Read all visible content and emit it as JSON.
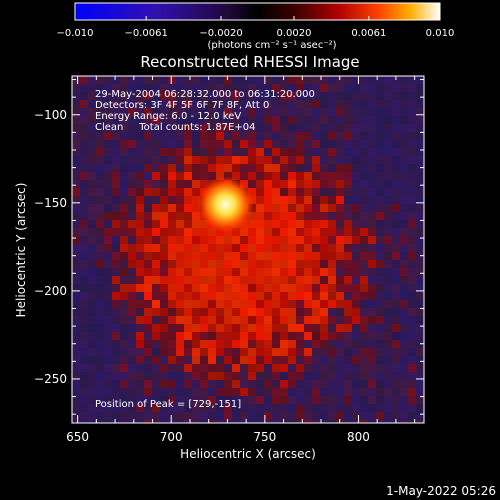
{
  "colorbar": {
    "tick_values": [
      -0.01,
      -0.0061,
      -0.002,
      0.002,
      0.0061,
      0.01
    ],
    "tick_labels": [
      "−0.010",
      "−0.0061",
      "−0.0020",
      "0.0020",
      "0.0061",
      "0.010"
    ],
    "units": "(photons cm⁻² s⁻¹ asec⁻²)",
    "range": [
      -0.01,
      0.01
    ]
  },
  "title": "Reconstructed RHESSI Image",
  "info": {
    "time_range": "29-May-2004 06:28:32.000 to 06:31:20.000",
    "detectors": "Detectors: 3F 4F 5F 6F 7F 8F, Att 0",
    "energy": "Energy Range: 6.0 - 12.0 keV",
    "clean": "Clean     Total counts: 1.87E+04"
  },
  "peak_label": "Position of Peak = [729,-151]",
  "peak_position": [
    729,
    -151
  ],
  "axes": {
    "xlabel": "Heliocentric X (arcsec)",
    "ylabel": "Heliocentric Y (arcsec)",
    "x_range": [
      647,
      835
    ],
    "y_range": [
      -275,
      -78
    ],
    "x_ticks": [
      650,
      700,
      750,
      800
    ],
    "y_ticks": [
      -100,
      -150,
      -200,
      -250
    ],
    "x_tick_labels": [
      "650",
      "700",
      "750",
      "800"
    ],
    "y_tick_labels": [
      "−100",
      "−150",
      "−200",
      "−250"
    ]
  },
  "timestamp": "1-May-2022 05:26",
  "colors": {
    "background": "#000000",
    "text": "#ffffff",
    "negative_low": "#2020ff",
    "background_purple": "#3a2046",
    "emission_red": "#d81a05",
    "peak_yellow": "#ffff80"
  }
}
